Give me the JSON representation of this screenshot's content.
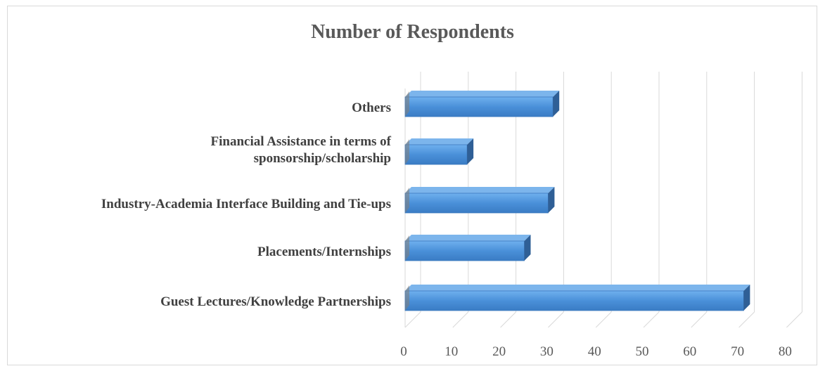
{
  "chart_data": {
    "type": "bar",
    "orientation": "horizontal",
    "style": "3d",
    "title": "Number of Respondents",
    "xlabel": "",
    "ylabel": "",
    "categories": [
      [
        "Others"
      ],
      [
        "Financial Assistance in terms of",
        "sponsorship/scholarship"
      ],
      [
        "Industry-Academia Interface Building and Tie-ups"
      ],
      [
        "Placements/Internships"
      ],
      [
        "Guest Lectures/Knowledge Partnerships"
      ]
    ],
    "values": [
      31,
      13,
      30,
      25,
      71
    ],
    "xlim": [
      0,
      80
    ],
    "xticks": [
      0,
      10,
      20,
      30,
      40,
      50,
      60,
      70,
      80
    ],
    "grid": true,
    "legend": "none",
    "colors": {
      "bar_front": "#4a90d9",
      "bar_top": "#7cb5ec",
      "bar_side": "#2f5f96",
      "grid": "#d9d9d9",
      "title": "#595959"
    }
  }
}
